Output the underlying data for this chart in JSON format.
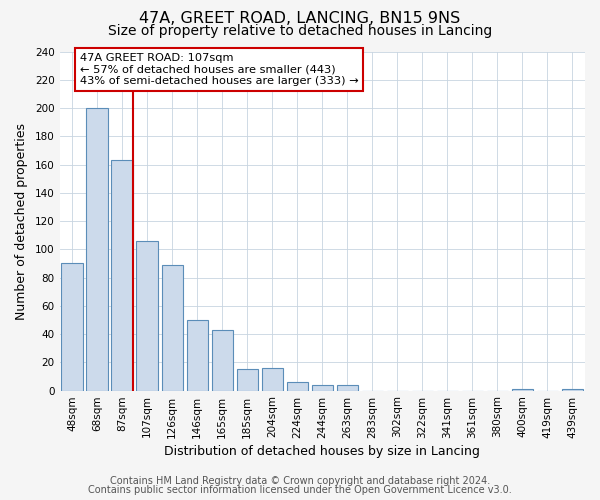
{
  "title": "47A, GREET ROAD, LANCING, BN15 9NS",
  "subtitle": "Size of property relative to detached houses in Lancing",
  "xlabel": "Distribution of detached houses by size in Lancing",
  "ylabel": "Number of detached properties",
  "bar_labels": [
    "48sqm",
    "68sqm",
    "87sqm",
    "107sqm",
    "126sqm",
    "146sqm",
    "165sqm",
    "185sqm",
    "204sqm",
    "224sqm",
    "244sqm",
    "263sqm",
    "283sqm",
    "302sqm",
    "322sqm",
    "341sqm",
    "361sqm",
    "380sqm",
    "400sqm",
    "419sqm",
    "439sqm"
  ],
  "bar_values": [
    90,
    200,
    163,
    106,
    89,
    50,
    43,
    15,
    16,
    6,
    4,
    4,
    0,
    0,
    0,
    0,
    0,
    0,
    1,
    0,
    1
  ],
  "bar_color": "#ccdaeb",
  "bar_edge_color": "#5b8db8",
  "vline_color": "#cc0000",
  "annotation_text": "47A GREET ROAD: 107sqm\n← 57% of detached houses are smaller (443)\n43% of semi-detached houses are larger (333) →",
  "annotation_box_edgecolor": "#cc0000",
  "annotation_box_facecolor": "#ffffff",
  "ylim": [
    0,
    240
  ],
  "yticks": [
    0,
    20,
    40,
    60,
    80,
    100,
    120,
    140,
    160,
    180,
    200,
    220,
    240
  ],
  "footnote1": "Contains HM Land Registry data © Crown copyright and database right 2024.",
  "footnote2": "Contains public sector information licensed under the Open Government Licence v3.0.",
  "bg_color": "#f5f5f5",
  "plot_bg_color": "#ffffff",
  "title_fontsize": 11.5,
  "subtitle_fontsize": 10,
  "label_fontsize": 9,
  "tick_fontsize": 7.5,
  "footnote_fontsize": 7,
  "grid_color": "#c8d4e0"
}
